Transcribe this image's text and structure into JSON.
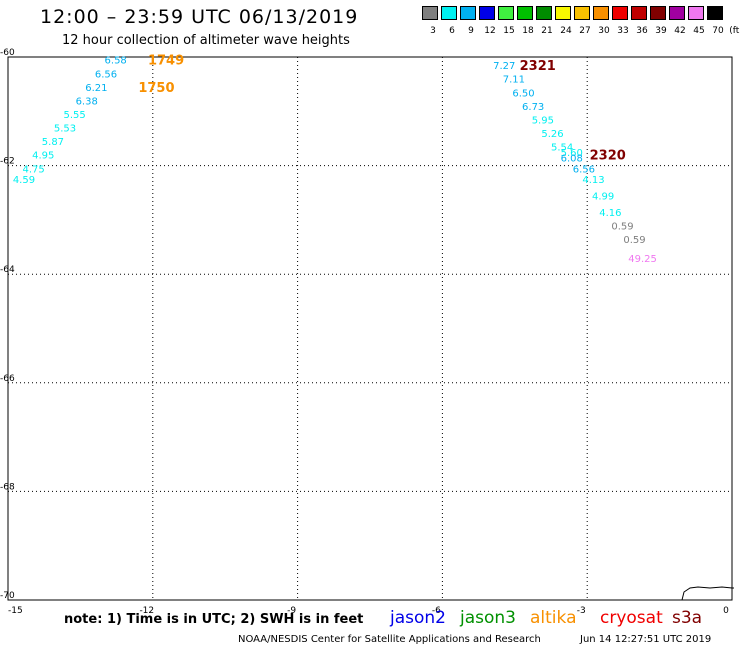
{
  "title": "12:00 – 23:59 UTC 06/13/2019",
  "subtitle": "12 hour collection of altimeter wave heights",
  "color_scale": {
    "unit": "(ft)",
    "bins": [
      {
        "label": "3",
        "color": "#7f7f7f"
      },
      {
        "label": "6",
        "color": "#00f0f0"
      },
      {
        "label": "9",
        "color": "#00b0f0"
      },
      {
        "label": "12",
        "color": "#0000e8"
      },
      {
        "label": "15",
        "color": "#40f040"
      },
      {
        "label": "18",
        "color": "#00c000"
      },
      {
        "label": "21",
        "color": "#008c00"
      },
      {
        "label": "24",
        "color": "#f8f800"
      },
      {
        "label": "27",
        "color": "#f8c000"
      },
      {
        "label": "30",
        "color": "#f89000"
      },
      {
        "label": "33",
        "color": "#f00000"
      },
      {
        "label": "36",
        "color": "#c00000"
      },
      {
        "label": "39",
        "color": "#800000"
      },
      {
        "label": "42",
        "color": "#a000a0"
      },
      {
        "label": "45",
        "color": "#f078f0"
      },
      {
        "label": "70",
        "color": "#000000"
      }
    ]
  },
  "map": {
    "lon_range": [
      -15,
      0
    ],
    "lat_range": [
      -70,
      -60
    ],
    "lon_ticks": [
      {
        "value": -15,
        "label": "-15"
      },
      {
        "value": -12,
        "label": "-12"
      },
      {
        "value": -9,
        "label": "-9"
      },
      {
        "value": -6,
        "label": "-6"
      },
      {
        "value": -3,
        "label": "-3"
      },
      {
        "value": 0,
        "label": "0"
      }
    ],
    "lat_ticks": [
      {
        "value": -60,
        "label": "-60"
      },
      {
        "value": -62,
        "label": "-62"
      },
      {
        "value": -64,
        "label": "-64"
      },
      {
        "value": -66,
        "label": "-66"
      },
      {
        "value": -68,
        "label": "-68"
      },
      {
        "value": -70,
        "label": "-70"
      }
    ],
    "grid": "dotted"
  },
  "pass_labels": [
    {
      "label": "1749",
      "lon": -12.1,
      "lat": -60.05,
      "color": "#f89000"
    },
    {
      "label": "1750",
      "lon": -12.3,
      "lat": -60.55,
      "color": "#f89000"
    },
    {
      "label": "2321",
      "lon": -4.4,
      "lat": -60.15,
      "color": "#800000"
    },
    {
      "label": "2320",
      "lon": -2.95,
      "lat": -61.8,
      "color": "#800000"
    }
  ],
  "observations": [
    {
      "value": "6.58",
      "lon": -13.0,
      "lat": -60.05,
      "color": "#00b0f0"
    },
    {
      "value": "6.56",
      "lon": -13.2,
      "lat": -60.3,
      "color": "#00b0f0"
    },
    {
      "value": "6.21",
      "lon": -13.4,
      "lat": -60.55,
      "color": "#00b0f0"
    },
    {
      "value": "6.38",
      "lon": -13.6,
      "lat": -60.8,
      "color": "#00b0f0"
    },
    {
      "value": "5.55",
      "lon": -13.85,
      "lat": -61.05,
      "color": "#00f0f0"
    },
    {
      "value": "5.53",
      "lon": -14.05,
      "lat": -61.3,
      "color": "#00f0f0"
    },
    {
      "value": "5.87",
      "lon": -14.3,
      "lat": -61.55,
      "color": "#00f0f0"
    },
    {
      "value": "4.95",
      "lon": -14.5,
      "lat": -61.8,
      "color": "#00f0f0"
    },
    {
      "value": "4.75",
      "lon": -14.7,
      "lat": -62.05,
      "color": "#00f0f0"
    },
    {
      "value": "4.59",
      "lon": -14.9,
      "lat": -62.25,
      "color": "#00f0f0"
    },
    {
      "value": "7.27",
      "lon": -4.95,
      "lat": -60.15,
      "color": "#00b0f0"
    },
    {
      "value": "7.11",
      "lon": -4.75,
      "lat": -60.4,
      "color": "#00b0f0"
    },
    {
      "value": "6.50",
      "lon": -4.55,
      "lat": -60.65,
      "color": "#00b0f0"
    },
    {
      "value": "6.73",
      "lon": -4.35,
      "lat": -60.9,
      "color": "#00b0f0"
    },
    {
      "value": "5.95",
      "lon": -4.15,
      "lat": -61.15,
      "color": "#00f0f0"
    },
    {
      "value": "5.26",
      "lon": -3.95,
      "lat": -61.4,
      "color": "#00f0f0"
    },
    {
      "value": "5.54",
      "lon": -3.75,
      "lat": -61.65,
      "color": "#00f0f0"
    },
    {
      "value": "5.60",
      "lon": -3.55,
      "lat": -61.75,
      "color": "#00f0f0"
    },
    {
      "value": "6.08",
      "lon": -3.55,
      "lat": -61.85,
      "color": "#00b0f0"
    },
    {
      "value": "6.56",
      "lon": -3.3,
      "lat": -62.05,
      "color": "#00b0f0"
    },
    {
      "value": "4.13",
      "lon": -3.1,
      "lat": -62.25,
      "color": "#00f0f0"
    },
    {
      "value": "4.99",
      "lon": -2.9,
      "lat": -62.55,
      "color": "#00f0f0"
    },
    {
      "value": "4.16",
      "lon": -2.75,
      "lat": -62.85,
      "color": "#00f0f0"
    },
    {
      "value": "0.59",
      "lon": -2.5,
      "lat": -63.1,
      "color": "#7f7f7f"
    },
    {
      "value": "0.59",
      "lon": -2.25,
      "lat": -63.35,
      "color": "#7f7f7f"
    },
    {
      "value": "49.25",
      "lon": -2.15,
      "lat": -63.7,
      "color": "#f078f0"
    }
  ],
  "note": "note: 1) Time is in UTC; 2) SWH is in feet",
  "legend": [
    {
      "name": "jason2",
      "color": "#0000e8"
    },
    {
      "name": "jason3",
      "color": "#009000"
    },
    {
      "name": "altika",
      "color": "#f89000"
    },
    {
      "name": "cryosat",
      "color": "#f00000"
    },
    {
      "name": "s3a",
      "color": "#800000"
    }
  ],
  "footer": {
    "credit": "NOAA/NESDIS Center for Satellite Applications and Research",
    "timestamp": "Jun 14 12:27:51 UTC 2019"
  }
}
